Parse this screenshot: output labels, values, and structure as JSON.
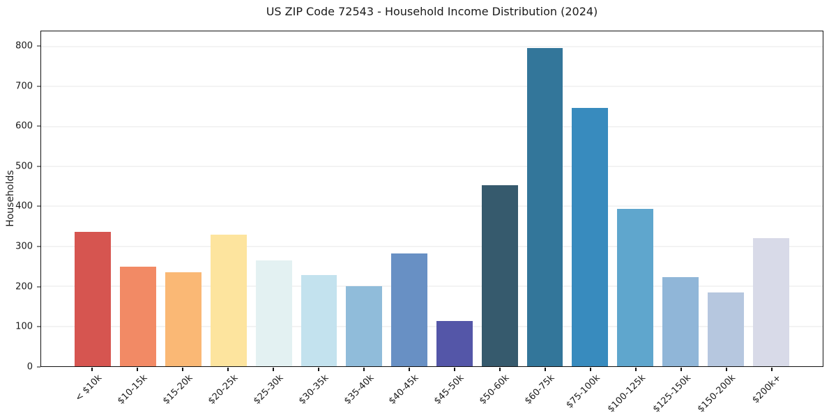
{
  "chart_data": {
    "type": "bar",
    "title": "US ZIP Code 72543 - Household Income Distribution (2024)",
    "xlabel": "",
    "ylabel": "Households",
    "categories": [
      "< $10k",
      "$10-15k",
      "$15-20k",
      "$20-25k",
      "$25-30k",
      "$30-35k",
      "$35-40k",
      "$40-45k",
      "$45-50k",
      "$50-60k",
      "$60-75k",
      "$75-100k",
      "$100-125k",
      "$125-150k",
      "$150-200k",
      "$200k+"
    ],
    "values": [
      337,
      250,
      235,
      330,
      265,
      229,
      200,
      282,
      113,
      453,
      796,
      647,
      394,
      223,
      184,
      320
    ],
    "bar_colors": [
      "#d65550",
      "#f28a65",
      "#fab875",
      "#fde49e",
      "#e3f1f2",
      "#c3e2ee",
      "#90bcda",
      "#6890c4",
      "#5456a8",
      "#365a6d",
      "#33769a",
      "#388bbe",
      "#5fa6cd",
      "#90b6d8",
      "#b6c7df",
      "#d8dae8"
    ],
    "yticks": [
      0,
      100,
      200,
      300,
      400,
      500,
      600,
      700,
      800
    ],
    "ylim": [
      0,
      838
    ],
    "grid": "horizontal",
    "grid_color": "#e7e7e7",
    "legend": "none",
    "background": "#ffffff",
    "text_color": "#1a1a1a"
  }
}
